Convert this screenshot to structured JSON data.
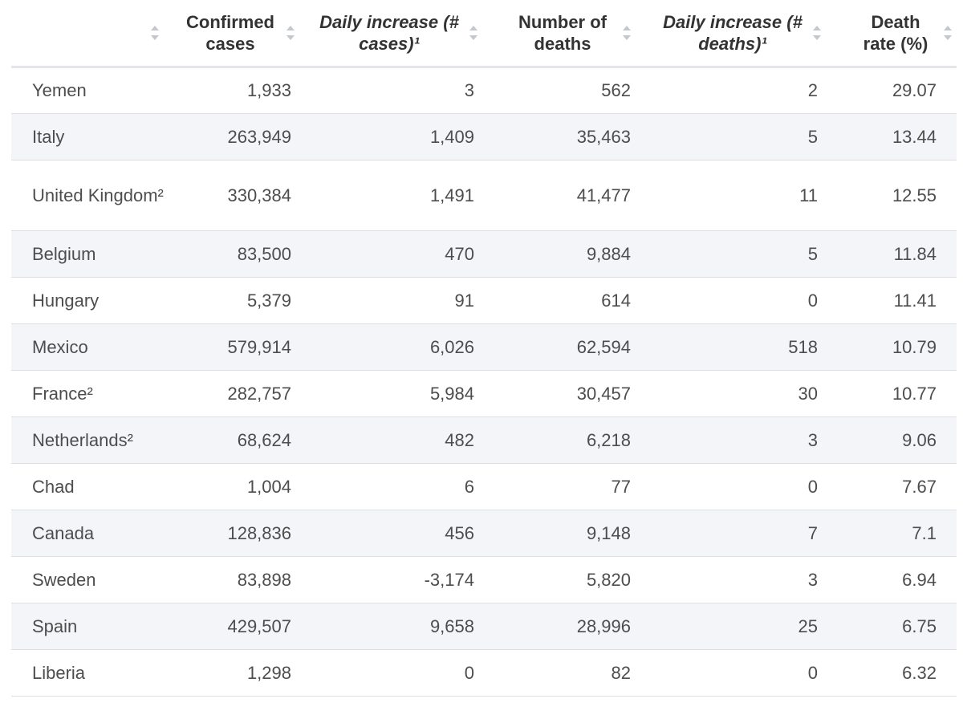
{
  "table": {
    "headers": [
      {
        "label": "",
        "italic": false
      },
      {
        "label": "Confirmed cases",
        "italic": false
      },
      {
        "label": "Daily increase (# cases)¹",
        "italic": true
      },
      {
        "label": "Number of deaths",
        "italic": false
      },
      {
        "label": "Daily increase (# deaths)¹",
        "italic": true
      },
      {
        "label": "Death rate (%)",
        "italic": false
      }
    ],
    "rows": [
      {
        "country": "Yemen",
        "confirmed": "1,933",
        "daily_cases": "3",
        "deaths": "562",
        "daily_deaths": "2",
        "death_rate": "29.07"
      },
      {
        "country": "Italy",
        "confirmed": "263,949",
        "daily_cases": "1,409",
        "deaths": "35,463",
        "daily_deaths": "5",
        "death_rate": "13.44"
      },
      {
        "country": "United Kingdom²",
        "confirmed": "330,384",
        "daily_cases": "1,491",
        "deaths": "41,477",
        "daily_deaths": "11",
        "death_rate": "12.55"
      },
      {
        "country": "Belgium",
        "confirmed": "83,500",
        "daily_cases": "470",
        "deaths": "9,884",
        "daily_deaths": "5",
        "death_rate": "11.84"
      },
      {
        "country": "Hungary",
        "confirmed": "5,379",
        "daily_cases": "91",
        "deaths": "614",
        "daily_deaths": "0",
        "death_rate": "11.41"
      },
      {
        "country": "Mexico",
        "confirmed": "579,914",
        "daily_cases": "6,026",
        "deaths": "62,594",
        "daily_deaths": "518",
        "death_rate": "10.79"
      },
      {
        "country": "France²",
        "confirmed": "282,757",
        "daily_cases": "5,984",
        "deaths": "30,457",
        "daily_deaths": "30",
        "death_rate": "10.77"
      },
      {
        "country": "Netherlands²",
        "confirmed": "68,624",
        "daily_cases": "482",
        "deaths": "6,218",
        "daily_deaths": "3",
        "death_rate": "9.06"
      },
      {
        "country": "Chad",
        "confirmed": "1,004",
        "daily_cases": "6",
        "deaths": "77",
        "daily_deaths": "0",
        "death_rate": "7.67"
      },
      {
        "country": "Canada",
        "confirmed": "128,836",
        "daily_cases": "456",
        "deaths": "9,148",
        "daily_deaths": "7",
        "death_rate": "7.1"
      },
      {
        "country": "Sweden",
        "confirmed": "83,898",
        "daily_cases": "-3,174",
        "deaths": "5,820",
        "daily_deaths": "3",
        "death_rate": "6.94"
      },
      {
        "country": "Spain",
        "confirmed": "429,507",
        "daily_cases": "9,658",
        "deaths": "28,996",
        "daily_deaths": "25",
        "death_rate": "6.75"
      },
      {
        "country": "Liberia",
        "confirmed": "1,298",
        "daily_cases": "0",
        "deaths": "82",
        "daily_deaths": "0",
        "death_rate": "6.32"
      }
    ]
  },
  "icons": {
    "sort": "sort-arrows-icon"
  },
  "colors": {
    "row_alt_bg": "#f3f5f9",
    "header_text": "#333333",
    "body_text": "#4d4d4d",
    "sort_icon": "#c4c7cc",
    "border": "#dcdfe3"
  }
}
